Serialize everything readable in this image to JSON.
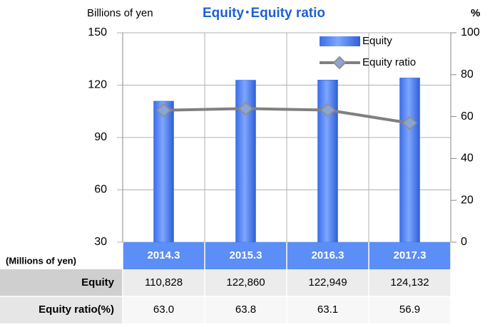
{
  "chart_data": {
    "type": "bar",
    "title": "Equity･Equity ratio",
    "y_label": "Billions of yen",
    "y2_label": "%",
    "table_unit": "(Millions of yen)",
    "categories": [
      "2014.3",
      "2015.3",
      "2016.3",
      "2017.3"
    ],
    "series": [
      {
        "name": "Equity",
        "type": "bar",
        "color": "#4a7cf0",
        "values": [
          110.828,
          122.86,
          122.949,
          124.132
        ],
        "value_labels": [
          "110,828",
          "122,860",
          "122,949",
          "124,132"
        ]
      },
      {
        "name": "Equity ratio",
        "type": "line",
        "axis": "y2",
        "color": "#808080",
        "values": [
          63.0,
          63.8,
          63.1,
          56.9
        ],
        "value_labels": [
          "63.0",
          "63.8",
          "63.1",
          "56.9"
        ]
      }
    ],
    "table_rows": [
      "Equity",
      "Equity ratio(%)"
    ],
    "ylim": [
      30,
      150
    ],
    "yticks": [
      30,
      60,
      90,
      120,
      150
    ],
    "y2lim": [
      0,
      100
    ],
    "y2ticks": [
      0,
      20,
      40,
      60,
      80,
      100
    ],
    "grid": true,
    "legend": "top-right"
  }
}
